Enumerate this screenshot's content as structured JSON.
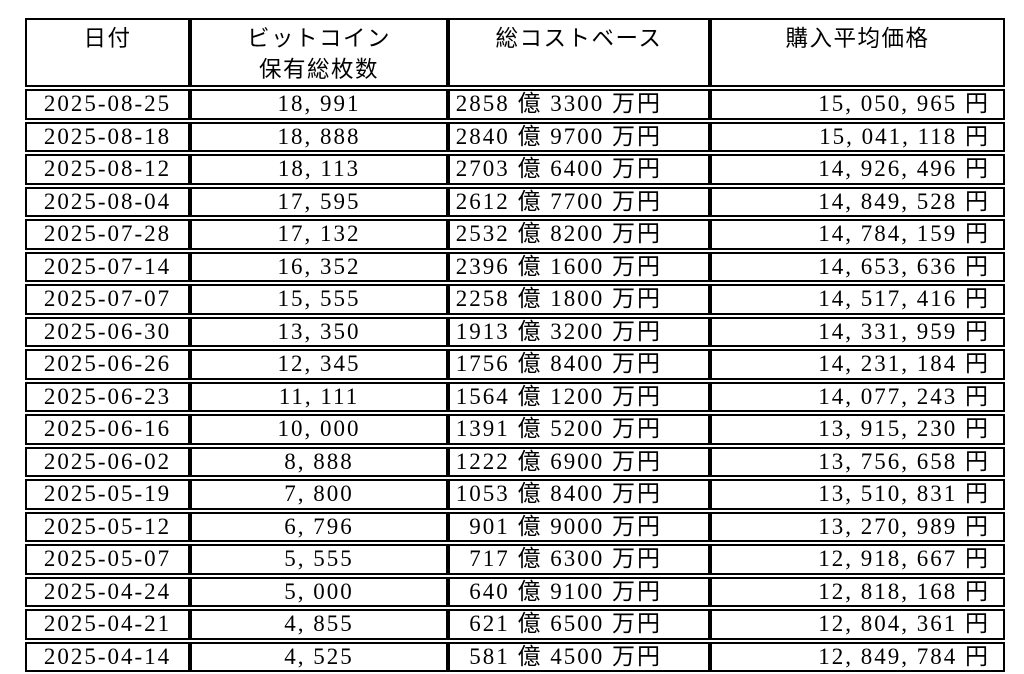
{
  "colors": {
    "background": "#ffffff",
    "border": "#000000",
    "text": "#000000"
  },
  "header": {
    "col1": "日付",
    "col2_line1": "ビットコイン",
    "col2_line2": "保有総枚数",
    "col3": "総コストベース",
    "col4": "購入平均価格"
  },
  "chart_data": {
    "type": "table",
    "title": "",
    "columns": [
      "日付",
      "ビットコイン保有総枚数",
      "総コストベース",
      "購入平均価格"
    ],
    "rows": [
      [
        "2025-08-25",
        "18, 991",
        "2858 億 3300 万円",
        "15, 050, 965 円"
      ],
      [
        "2025-08-18",
        "18, 888",
        "2840 億 9700 万円",
        "15, 041, 118 円"
      ],
      [
        "2025-08-12",
        "18, 113",
        "2703 億 6400 万円",
        "14, 926, 496 円"
      ],
      [
        "2025-08-04",
        "17, 595",
        "2612 億 7700 万円",
        "14, 849, 528 円"
      ],
      [
        "2025-07-28",
        "17, 132",
        "2532 億 8200 万円",
        "14, 784, 159 円"
      ],
      [
        "2025-07-14",
        "16, 352",
        "2396 億 1600 万円",
        "14, 653, 636 円"
      ],
      [
        "2025-07-07",
        "15, 555",
        "2258 億 1800 万円",
        "14, 517, 416 円"
      ],
      [
        "2025-06-30",
        "13, 350",
        "1913 億 3200 万円",
        "14, 331, 959 円"
      ],
      [
        "2025-06-26",
        "12, 345",
        "1756 億 8400 万円",
        "14, 231, 184 円"
      ],
      [
        "2025-06-23",
        "11, 111",
        "1564 億 1200 万円",
        "14, 077, 243 円"
      ],
      [
        "2025-06-16",
        "10, 000",
        "1391 億 5200 万円",
        "13, 915, 230 円"
      ],
      [
        "2025-06-02",
        "8, 888",
        "1222 億 6900 万円",
        "13, 756, 658 円"
      ],
      [
        "2025-05-19",
        "7, 800",
        "1053 億 8400 万円",
        "13, 510, 831 円"
      ],
      [
        "2025-05-12",
        "6, 796",
        "901 億 9000 万円",
        "13, 270, 989 円"
      ],
      [
        "2025-05-07",
        "5, 555",
        "717 億 6300 万円",
        "12, 918, 667 円"
      ],
      [
        "2025-04-24",
        "5, 000",
        "640 億 9100 万円",
        "12, 818, 168 円"
      ],
      [
        "2025-04-21",
        "4, 855",
        "621 億 6500 万円",
        "12, 804, 361 円"
      ],
      [
        "2025-04-14",
        "4, 525",
        "581 億 4500 万円",
        "12, 849, 784 円"
      ]
    ]
  }
}
